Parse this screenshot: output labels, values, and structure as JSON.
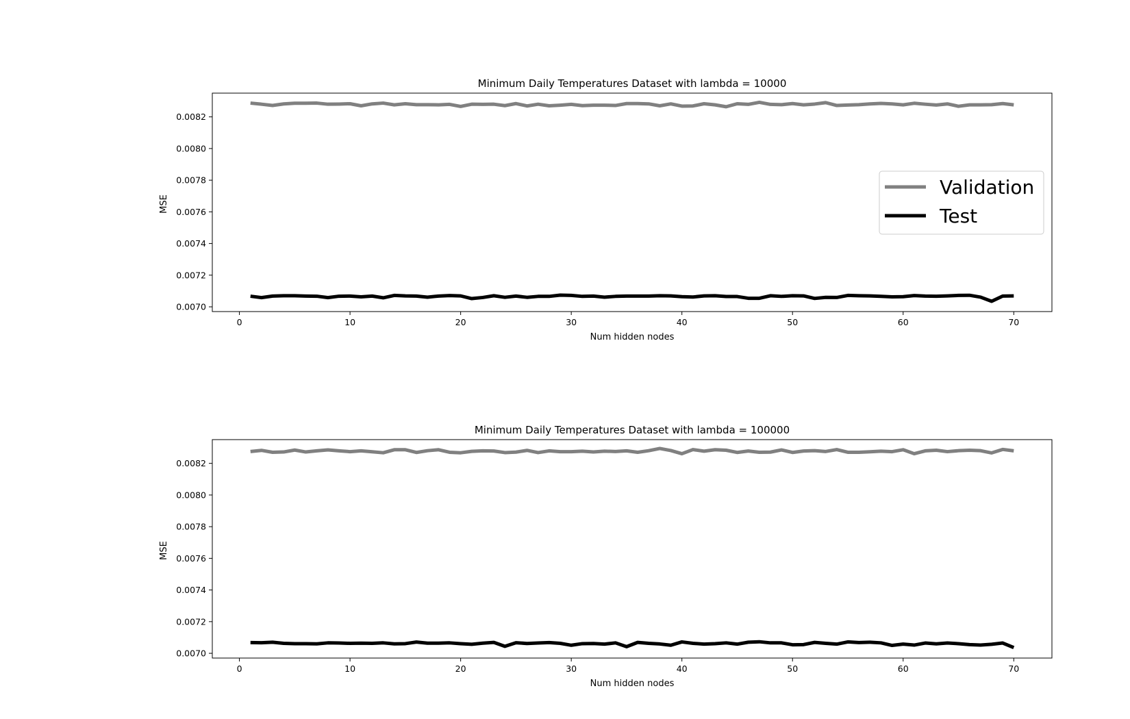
{
  "chart_data": [
    {
      "type": "line",
      "title": "Minimum Daily Temperatures Dataset with lambda = 10000",
      "xlabel": "Num hidden nodes",
      "ylabel": "MSE",
      "xlim": [
        -2.45,
        73.45
      ],
      "ylim": [
        0.00697,
        0.00835
      ],
      "xticks": [
        0,
        10,
        20,
        30,
        40,
        50,
        60,
        70
      ],
      "yticks": [
        0.007,
        0.0072,
        0.0074,
        0.0076,
        0.0078,
        0.008,
        0.0082
      ],
      "ytick_labels": [
        "0.0070",
        "0.0072",
        "0.0074",
        "0.0076",
        "0.0078",
        "0.0080",
        "0.0082"
      ],
      "grid": false,
      "legend": {
        "placement": "center-right",
        "font": "large"
      },
      "x": [
        1,
        2,
        3,
        4,
        5,
        6,
        7,
        8,
        9,
        10,
        11,
        12,
        13,
        14,
        15,
        16,
        17,
        18,
        19,
        20,
        21,
        22,
        23,
        24,
        25,
        26,
        27,
        28,
        29,
        30,
        31,
        32,
        33,
        34,
        35,
        36,
        37,
        38,
        39,
        40,
        41,
        42,
        43,
        44,
        45,
        46,
        47,
        48,
        49,
        50,
        51,
        52,
        53,
        54,
        55,
        56,
        57,
        58,
        59,
        60,
        61,
        62,
        63,
        64,
        65,
        66,
        67,
        68,
        69,
        70
      ],
      "series": [
        {
          "name": "Validation",
          "color": "#808080",
          "values": [
            0.008287,
            0.00828,
            0.008272,
            0.008282,
            0.008286,
            0.008286,
            0.008287,
            0.00828,
            0.008281,
            0.008283,
            0.00827,
            0.008282,
            0.008287,
            0.008276,
            0.008283,
            0.008277,
            0.008277,
            0.008276,
            0.008279,
            0.008266,
            0.00828,
            0.008279,
            0.00828,
            0.008271,
            0.008284,
            0.008269,
            0.00828,
            0.00827,
            0.008274,
            0.008279,
            0.008271,
            0.008274,
            0.008274,
            0.008272,
            0.008284,
            0.008284,
            0.008282,
            0.00827,
            0.008282,
            0.008268,
            0.008269,
            0.008283,
            0.008276,
            0.008264,
            0.008283,
            0.008279,
            0.008292,
            0.008279,
            0.008277,
            0.008284,
            0.008276,
            0.008281,
            0.00829,
            0.008272,
            0.008275,
            0.008277,
            0.008282,
            0.008285,
            0.008282,
            0.008276,
            0.008286,
            0.00828,
            0.008275,
            0.008282,
            0.008267,
            0.008276,
            0.008276,
            0.008277,
            0.008284,
            0.008276
          ]
        },
        {
          "name": "Test",
          "color": "#000000",
          "values": [
            0.007067,
            0.007058,
            0.007068,
            0.00707,
            0.00707,
            0.007068,
            0.007067,
            0.007058,
            0.007067,
            0.007068,
            0.007063,
            0.007068,
            0.007057,
            0.007072,
            0.007069,
            0.007068,
            0.007061,
            0.007068,
            0.007071,
            0.007069,
            0.007052,
            0.007059,
            0.00707,
            0.00706,
            0.007068,
            0.00706,
            0.007066,
            0.007066,
            0.007074,
            0.007072,
            0.007066,
            0.007068,
            0.007061,
            0.007066,
            0.007068,
            0.007068,
            0.007068,
            0.00707,
            0.007069,
            0.007064,
            0.007062,
            0.007069,
            0.00707,
            0.007065,
            0.007065,
            0.007054,
            0.007054,
            0.00707,
            0.007066,
            0.00707,
            0.007069,
            0.007053,
            0.00706,
            0.007059,
            0.007072,
            0.00707,
            0.007069,
            0.007066,
            0.007063,
            0.007064,
            0.007071,
            0.007068,
            0.007067,
            0.007069,
            0.007072,
            0.007073,
            0.007061,
            0.007035,
            0.007068,
            0.007069
          ]
        }
      ]
    },
    {
      "type": "line",
      "title": "Minimum Daily Temperatures Dataset with lambda = 100000",
      "xlabel": "Num hidden nodes",
      "ylabel": "MSE",
      "xlim": [
        -2.45,
        73.45
      ],
      "ylim": [
        0.00697,
        0.00835
      ],
      "xticks": [
        0,
        10,
        20,
        30,
        40,
        50,
        60,
        70
      ],
      "yticks": [
        0.007,
        0.0072,
        0.0074,
        0.0076,
        0.0078,
        0.008,
        0.0082
      ],
      "ytick_labels": [
        "0.0070",
        "0.0072",
        "0.0074",
        "0.0076",
        "0.0078",
        "0.0080",
        "0.0082"
      ],
      "grid": false,
      "x": [
        1,
        2,
        3,
        4,
        5,
        6,
        7,
        8,
        9,
        10,
        11,
        12,
        13,
        14,
        15,
        16,
        17,
        18,
        19,
        20,
        21,
        22,
        23,
        24,
        25,
        26,
        27,
        28,
        29,
        30,
        31,
        32,
        33,
        34,
        35,
        36,
        37,
        38,
        39,
        40,
        41,
        42,
        43,
        44,
        45,
        46,
        47,
        48,
        49,
        50,
        51,
        52,
        53,
        54,
        55,
        56,
        57,
        58,
        59,
        60,
        61,
        62,
        63,
        64,
        65,
        66,
        67,
        68,
        69,
        70
      ],
      "series": [
        {
          "name": "Validation",
          "color": "#808080",
          "values": [
            0.008275,
            0.008282,
            0.00827,
            0.008272,
            0.008284,
            0.008272,
            0.008279,
            0.008285,
            0.008279,
            0.008274,
            0.008279,
            0.008273,
            0.008267,
            0.008286,
            0.008286,
            0.008269,
            0.00828,
            0.008286,
            0.00827,
            0.008267,
            0.008276,
            0.008279,
            0.008278,
            0.008268,
            0.008271,
            0.008282,
            0.008268,
            0.008279,
            0.008274,
            0.008274,
            0.008277,
            0.008272,
            0.008277,
            0.008275,
            0.008279,
            0.00827,
            0.00828,
            0.008294,
            0.008281,
            0.008261,
            0.008287,
            0.008277,
            0.008286,
            0.008283,
            0.008269,
            0.008278,
            0.00827,
            0.008271,
            0.008285,
            0.008269,
            0.008278,
            0.00828,
            0.008275,
            0.008287,
            0.00827,
            0.00827,
            0.008273,
            0.008277,
            0.008274,
            0.008286,
            0.008261,
            0.008279,
            0.008283,
            0.008274,
            0.00828,
            0.008283,
            0.00828,
            0.008266,
            0.008288,
            0.008279
          ]
        },
        {
          "name": "Test",
          "color": "#000000",
          "values": [
            0.007068,
            0.007067,
            0.00707,
            0.007063,
            0.007061,
            0.007061,
            0.00706,
            0.007066,
            0.007065,
            0.007063,
            0.007064,
            0.007063,
            0.007066,
            0.00706,
            0.007061,
            0.007071,
            0.007064,
            0.007064,
            0.007066,
            0.007061,
            0.007057,
            0.007064,
            0.007069,
            0.007044,
            0.007067,
            0.007062,
            0.007065,
            0.007068,
            0.007063,
            0.007051,
            0.007061,
            0.007062,
            0.007058,
            0.007066,
            0.007042,
            0.007069,
            0.007063,
            0.007059,
            0.007051,
            0.007072,
            0.007063,
            0.007058,
            0.007061,
            0.007066,
            0.007058,
            0.00707,
            0.007073,
            0.007066,
            0.007066,
            0.007054,
            0.007055,
            0.007069,
            0.007063,
            0.007058,
            0.007072,
            0.007068,
            0.00707,
            0.007066,
            0.00705,
            0.007058,
            0.007052,
            0.007065,
            0.00706,
            0.007065,
            0.007061,
            0.007055,
            0.007052,
            0.007057,
            0.007065,
            0.007036
          ]
        }
      ]
    }
  ]
}
